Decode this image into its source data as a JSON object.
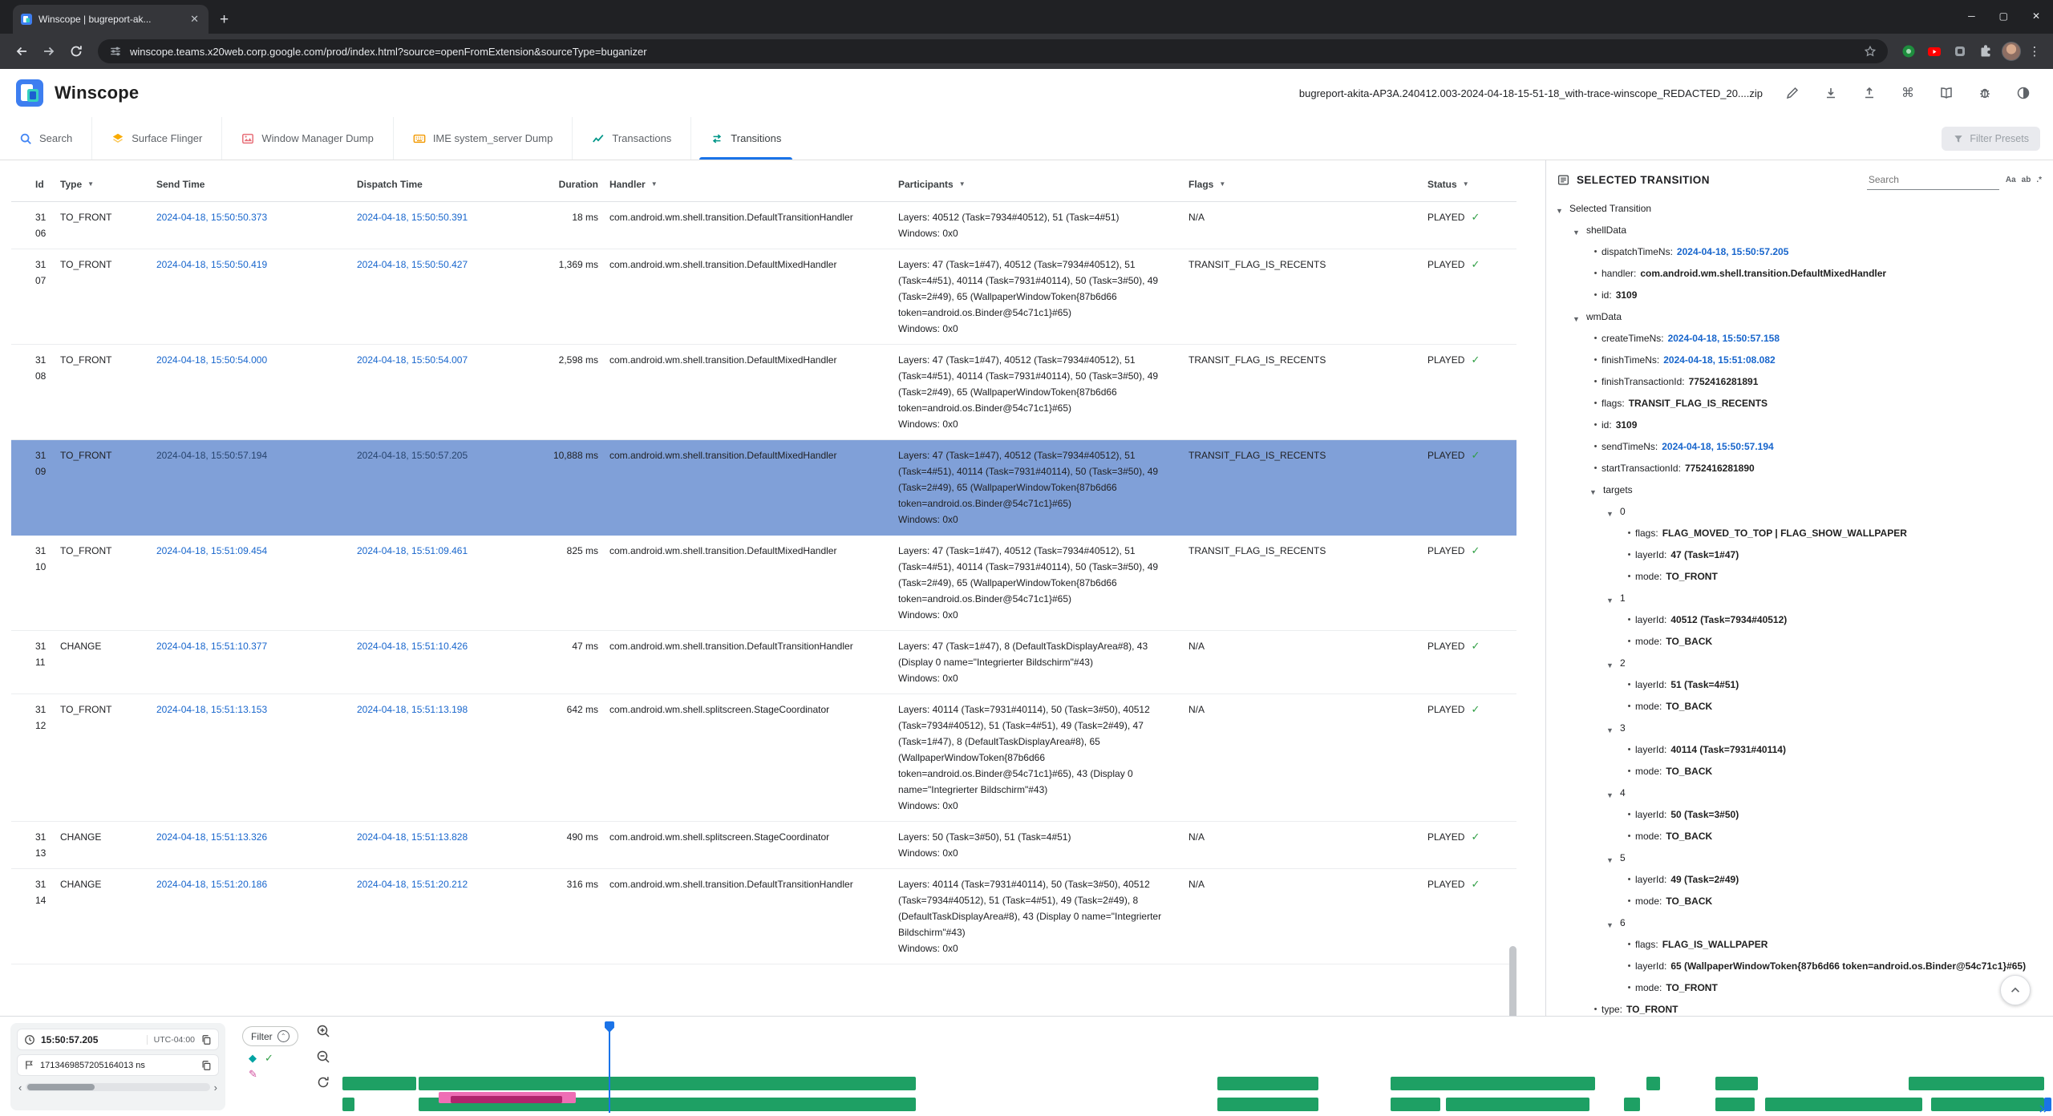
{
  "browser": {
    "tab_title": "Winscope | bugreport-ak...",
    "url": "winscope.teams.x20web.corp.google.com/prod/index.html?source=openFromExtension&sourceType=buganizer"
  },
  "header": {
    "app_name": "Winscope",
    "filename": "bugreport-akita-AP3A.240412.003-2024-04-18-15-51-18_with-trace-winscope_REDACTED_20....zip"
  },
  "tabs": [
    {
      "label": "Search",
      "icon": "search",
      "active": false
    },
    {
      "label": "Surface Flinger",
      "icon": "layers",
      "active": false
    },
    {
      "label": "Window Manager Dump",
      "icon": "image",
      "active": false
    },
    {
      "label": "IME system_server Dump",
      "icon": "keyboard",
      "active": false
    },
    {
      "label": "Transactions",
      "icon": "chart",
      "active": false
    },
    {
      "label": "Transitions",
      "icon": "transitions",
      "active": true
    }
  ],
  "filter_presets_label": "Filter Presets",
  "table": {
    "columns": [
      {
        "label": "Id",
        "filterable": false
      },
      {
        "label": "Type",
        "filterable": true
      },
      {
        "label": "Send Time",
        "filterable": false
      },
      {
        "label": "Dispatch Time",
        "filterable": false
      },
      {
        "label": "Duration",
        "filterable": false
      },
      {
        "label": "Handler",
        "filterable": true
      },
      {
        "label": "Participants",
        "filterable": true
      },
      {
        "label": "Flags",
        "filterable": true
      },
      {
        "label": "Status",
        "filterable": true
      }
    ],
    "rows": [
      {
        "id": "3106",
        "type": "TO_FRONT",
        "send": "2024-04-18, 15:50:50.373",
        "dispatch": "2024-04-18, 15:50:50.391",
        "duration": "18 ms",
        "handler": "com.android.wm.shell.transition.DefaultTransitionHandler",
        "participants": "Layers: 40512 (Task=7934#40512), 51 (Task=4#51)\nWindows: 0x0",
        "flags": "N/A",
        "status": "PLAYED",
        "selected": false
      },
      {
        "id": "3107",
        "type": "TO_FRONT",
        "send": "2024-04-18, 15:50:50.419",
        "dispatch": "2024-04-18, 15:50:50.427",
        "duration": "1,369 ms",
        "handler": "com.android.wm.shell.transition.DefaultMixedHandler",
        "participants": "Layers: 47 (Task=1#47), 40512 (Task=7934#40512), 51 (Task=4#51), 40114 (Task=7931#40114), 50 (Task=3#50), 49 (Task=2#49), 65 (WallpaperWindowToken{87b6d66 token=android.os.Binder@54c71c1}#65)\nWindows: 0x0",
        "flags": "TRANSIT_FLAG_IS_RECENTS",
        "status": "PLAYED",
        "selected": false
      },
      {
        "id": "3108",
        "type": "TO_FRONT",
        "send": "2024-04-18, 15:50:54.000",
        "dispatch": "2024-04-18, 15:50:54.007",
        "duration": "2,598 ms",
        "handler": "com.android.wm.shell.transition.DefaultMixedHandler",
        "participants": "Layers: 47 (Task=1#47), 40512 (Task=7934#40512), 51 (Task=4#51), 40114 (Task=7931#40114), 50 (Task=3#50), 49 (Task=2#49), 65 (WallpaperWindowToken{87b6d66 token=android.os.Binder@54c71c1}#65)\nWindows: 0x0",
        "flags": "TRANSIT_FLAG_IS_RECENTS",
        "status": "PLAYED",
        "selected": false
      },
      {
        "id": "3109",
        "type": "TO_FRONT",
        "send": "2024-04-18, 15:50:57.194",
        "dispatch": "2024-04-18, 15:50:57.205",
        "duration": "10,888 ms",
        "handler": "com.android.wm.shell.transition.DefaultMixedHandler",
        "participants": "Layers: 47 (Task=1#47), 40512 (Task=7934#40512), 51 (Task=4#51), 40114 (Task=7931#40114), 50 (Task=3#50), 49 (Task=2#49), 65 (WallpaperWindowToken{87b6d66 token=android.os.Binder@54c71c1}#65)\nWindows: 0x0",
        "flags": "TRANSIT_FLAG_IS_RECENTS",
        "status": "PLAYED",
        "selected": true
      },
      {
        "id": "3110",
        "type": "TO_FRONT",
        "send": "2024-04-18, 15:51:09.454",
        "dispatch": "2024-04-18, 15:51:09.461",
        "duration": "825 ms",
        "handler": "com.android.wm.shell.transition.DefaultMixedHandler",
        "participants": "Layers: 47 (Task=1#47), 40512 (Task=7934#40512), 51 (Task=4#51), 40114 (Task=7931#40114), 50 (Task=3#50), 49 (Task=2#49), 65 (WallpaperWindowToken{87b6d66 token=android.os.Binder@54c71c1}#65)\nWindows: 0x0",
        "flags": "TRANSIT_FLAG_IS_RECENTS",
        "status": "PLAYED",
        "selected": false
      },
      {
        "id": "3111",
        "type": "CHANGE",
        "send": "2024-04-18, 15:51:10.377",
        "dispatch": "2024-04-18, 15:51:10.426",
        "duration": "47 ms",
        "handler": "com.android.wm.shell.transition.DefaultTransitionHandler",
        "participants": "Layers: 47 (Task=1#47), 8 (DefaultTaskDisplayArea#8), 43 (Display 0 name=\"Integrierter Bildschirm\"#43)\nWindows: 0x0",
        "flags": "N/A",
        "status": "PLAYED",
        "selected": false
      },
      {
        "id": "3112",
        "type": "TO_FRONT",
        "send": "2024-04-18, 15:51:13.153",
        "dispatch": "2024-04-18, 15:51:13.198",
        "duration": "642 ms",
        "handler": "com.android.wm.shell.splitscreen.StageCoordinator",
        "participants": "Layers: 40114 (Task=7931#40114), 50 (Task=3#50), 40512 (Task=7934#40512), 51 (Task=4#51), 49 (Task=2#49), 47 (Task=1#47), 8 (DefaultTaskDisplayArea#8), 65 (WallpaperWindowToken{87b6d66 token=android.os.Binder@54c71c1}#65), 43 (Display 0 name=\"Integrierter Bildschirm\"#43)\nWindows: 0x0",
        "flags": "N/A",
        "status": "PLAYED",
        "selected": false
      },
      {
        "id": "3113",
        "type": "CHANGE",
        "send": "2024-04-18, 15:51:13.326",
        "dispatch": "2024-04-18, 15:51:13.828",
        "duration": "490 ms",
        "handler": "com.android.wm.shell.splitscreen.StageCoordinator",
        "participants": "Layers: 50 (Task=3#50), 51 (Task=4#51)\nWindows: 0x0",
        "flags": "N/A",
        "status": "PLAYED",
        "selected": false
      },
      {
        "id": "3114",
        "type": "CHANGE",
        "send": "2024-04-18, 15:51:20.186",
        "dispatch": "2024-04-18, 15:51:20.212",
        "duration": "316 ms",
        "handler": "com.android.wm.shell.transition.DefaultTransitionHandler",
        "participants": "Layers: 40114 (Task=7931#40114), 50 (Task=3#50), 40512 (Task=7934#40512), 51 (Task=4#51), 49 (Task=2#49), 8 (DefaultTaskDisplayArea#8), 43 (Display 0 name=\"Integrierter Bildschirm\"#43)\nWindows: 0x0",
        "flags": "N/A",
        "status": "PLAYED",
        "selected": false
      }
    ]
  },
  "panel": {
    "title": "SELECTED TRANSITION",
    "search_placeholder": "Search",
    "search_tools": [
      "Aa",
      "ab",
      ".*"
    ],
    "tree": {
      "label": "Selected Transition",
      "children": [
        {
          "label": "shellData",
          "children": [
            {
              "key": "dispatchTimeNs",
              "value": "2024-04-18, 15:50:57.205",
              "time": true
            },
            {
              "key": "handler",
              "value": "com.android.wm.shell.transition.DefaultMixedHandler"
            },
            {
              "key": "id",
              "value": "3109"
            }
          ]
        },
        {
          "label": "wmData",
          "children": [
            {
              "key": "createTimeNs",
              "value": "2024-04-18, 15:50:57.158",
              "time": true
            },
            {
              "key": "finishTimeNs",
              "value": "2024-04-18, 15:51:08.082",
              "time": true
            },
            {
              "key": "finishTransactionId",
              "value": "7752416281891"
            },
            {
              "key": "flags",
              "value": "TRANSIT_FLAG_IS_RECENTS"
            },
            {
              "key": "id",
              "value": "3109"
            },
            {
              "key": "sendTimeNs",
              "value": "2024-04-18, 15:50:57.194",
              "time": true
            },
            {
              "key": "startTransactionId",
              "value": "7752416281890"
            },
            {
              "label": "targets",
              "children": [
                {
                  "label": "0",
                  "children": [
                    {
                      "key": "flags",
                      "value": "FLAG_MOVED_TO_TOP | FLAG_SHOW_WALLPAPER"
                    },
                    {
                      "key": "layerId",
                      "value": "47 (Task=1#47)"
                    },
                    {
                      "key": "mode",
                      "value": "TO_FRONT"
                    }
                  ]
                },
                {
                  "label": "1",
                  "children": [
                    {
                      "key": "layerId",
                      "value": "40512 (Task=7934#40512)"
                    },
                    {
                      "key": "mode",
                      "value": "TO_BACK"
                    }
                  ]
                },
                {
                  "label": "2",
                  "children": [
                    {
                      "key": "layerId",
                      "value": "51 (Task=4#51)"
                    },
                    {
                      "key": "mode",
                      "value": "TO_BACK"
                    }
                  ]
                },
                {
                  "label": "3",
                  "children": [
                    {
                      "key": "layerId",
                      "value": "40114 (Task=7931#40114)"
                    },
                    {
                      "key": "mode",
                      "value": "TO_BACK"
                    }
                  ]
                },
                {
                  "label": "4",
                  "children": [
                    {
                      "key": "layerId",
                      "value": "50 (Task=3#50)"
                    },
                    {
                      "key": "mode",
                      "value": "TO_BACK"
                    }
                  ]
                },
                {
                  "label": "5",
                  "children": [
                    {
                      "key": "layerId",
                      "value": "49 (Task=2#49)"
                    },
                    {
                      "key": "mode",
                      "value": "TO_BACK"
                    }
                  ]
                },
                {
                  "label": "6",
                  "children": [
                    {
                      "key": "flags",
                      "value": "FLAG_IS_WALLPAPER"
                    },
                    {
                      "key": "layerId",
                      "value": "65 (WallpaperWindowToken{87b6d66 token=android.os.Binder@54c71c1}#65)"
                    },
                    {
                      "key": "mode",
                      "value": "TO_FRONT"
                    }
                  ]
                }
              ]
            },
            {
              "key": "type",
              "value": "TO_FRONT"
            }
          ]
        }
      ]
    }
  },
  "timeline": {
    "time_label": "15:50:57.205",
    "utc_label": "UTC-04:00",
    "ns_label": "1713469857205164013 ns",
    "filter_label": "Filter",
    "cursor_frac": 0.158,
    "tracks": [
      {
        "name": "transactions-track",
        "segments": [
          {
            "s": 0.003,
            "e": 0.046,
            "c": "green"
          },
          {
            "s": 0.047,
            "e": 0.337,
            "c": "green"
          },
          {
            "s": 0.513,
            "e": 0.572,
            "c": "green"
          },
          {
            "s": 0.614,
            "e": 0.733,
            "c": "green"
          },
          {
            "s": 0.763,
            "e": 0.771,
            "c": "green"
          },
          {
            "s": 0.803,
            "e": 0.828,
            "c": "green"
          },
          {
            "s": 0.916,
            "e": 0.995,
            "c": "green"
          }
        ]
      },
      {
        "name": "transitions-track",
        "segments": [
          {
            "s": 0.003,
            "e": 0.01,
            "c": "green"
          },
          {
            "s": 0.047,
            "e": 0.337,
            "c": "green"
          },
          {
            "s": 0.059,
            "e": 0.139,
            "c": "pink"
          },
          {
            "s": 0.066,
            "e": 0.131,
            "c": "crimson"
          },
          {
            "s": 0.513,
            "e": 0.572,
            "c": "green"
          },
          {
            "s": 0.614,
            "e": 0.643,
            "c": "green"
          },
          {
            "s": 0.646,
            "e": 0.73,
            "c": "green"
          },
          {
            "s": 0.75,
            "e": 0.759,
            "c": "green"
          },
          {
            "s": 0.803,
            "e": 0.826,
            "c": "green"
          },
          {
            "s": 0.832,
            "e": 0.924,
            "c": "green"
          },
          {
            "s": 0.929,
            "e": 0.995,
            "c": "green"
          },
          {
            "s": 0.995,
            "e": 0.999,
            "c": "blue"
          }
        ]
      }
    ]
  },
  "colors": {
    "accent": "#1a73e8",
    "link": "#1765cc",
    "selected_row": "#80a0d8",
    "status_green": "#2f9e44",
    "segment_green": "#1ea064",
    "segment_pink": "#ef6eb5",
    "segment_magenta": "#b0246d",
    "cursor_blue": "#1a73e8"
  }
}
